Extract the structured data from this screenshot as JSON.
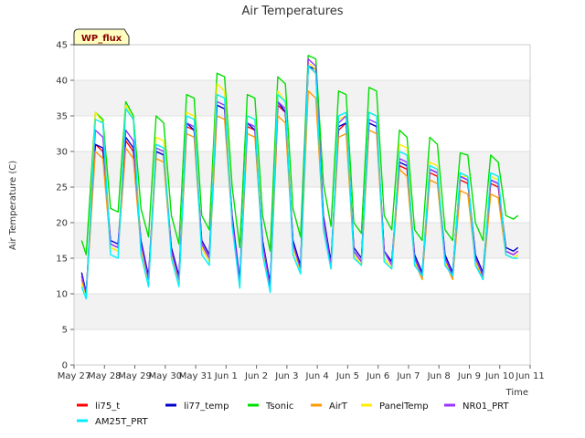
{
  "chart_data": {
    "type": "line",
    "title": "Air Temperatures",
    "xlabel": "Time",
    "ylabel": "Air Temperature (C)",
    "badge": "WP_flux",
    "ylim": [
      0,
      45
    ],
    "yticks": [
      0,
      5,
      10,
      15,
      20,
      25,
      30,
      35,
      40,
      45
    ],
    "xlim": [
      0,
      15
    ],
    "xticks": [
      {
        "x": 0,
        "label": "May 27"
      },
      {
        "x": 1,
        "label": "May 28"
      },
      {
        "x": 2,
        "label": "May 29"
      },
      {
        "x": 3,
        "label": "May 30"
      },
      {
        "x": 4,
        "label": "May 31"
      },
      {
        "x": 5,
        "label": "Jun 1"
      },
      {
        "x": 6,
        "label": "Jun 2"
      },
      {
        "x": 7,
        "label": "Jun 3"
      },
      {
        "x": 8,
        "label": "Jun 4"
      },
      {
        "x": 9,
        "label": "Jun 5"
      },
      {
        "x": 10,
        "label": "Jun 6"
      },
      {
        "x": 11,
        "label": "Jun 7"
      },
      {
        "x": 12,
        "label": "Jun 8"
      },
      {
        "x": 13,
        "label": "Jun 9"
      },
      {
        "x": 14,
        "label": "Jun 10"
      },
      {
        "x": 15,
        "label": "Jun 11"
      }
    ],
    "grid": "horizontal bands",
    "legend_position": "bottom",
    "x": [
      0.25,
      0.4,
      0.7,
      0.95,
      1.2,
      1.45,
      1.7,
      1.95,
      2.2,
      2.45,
      2.7,
      2.95,
      3.2,
      3.45,
      3.7,
      3.95,
      4.2,
      4.45,
      4.7,
      4.95,
      5.2,
      5.45,
      5.7,
      5.95,
      6.2,
      6.45,
      6.7,
      6.95,
      7.2,
      7.45,
      7.7,
      7.95,
      8.2,
      8.45,
      8.7,
      8.95,
      9.2,
      9.45,
      9.7,
      9.95,
      10.2,
      10.45,
      10.7,
      10.95,
      11.2,
      11.45,
      11.7,
      11.95,
      12.2,
      12.45,
      12.7,
      12.95,
      13.2,
      13.45,
      13.7,
      13.95,
      14.2,
      14.45,
      14.6
    ],
    "series": [
      {
        "name": "li75_t",
        "color": "#ff0000",
        "values": [
          12.5,
          10.0,
          31.0,
          30.0,
          17.0,
          16.5,
          31.5,
          30.0,
          17.0,
          12.0,
          30.0,
          29.5,
          16.0,
          12.0,
          33.5,
          33.0,
          17.0,
          15.0,
          36.5,
          36.0,
          20.5,
          11.5,
          33.5,
          33.0,
          17.0,
          11.0,
          36.5,
          35.5,
          17.0,
          13.5,
          42.0,
          41.0,
          20.0,
          14.0,
          33.0,
          34.0,
          16.0,
          14.5,
          34.0,
          33.5,
          16.0,
          14.0,
          28.0,
          27.5,
          15.0,
          12.5,
          27.0,
          26.5,
          15.0,
          12.5,
          26.0,
          25.5,
          15.0,
          12.5,
          25.5,
          25.0,
          16.0,
          15.5,
          16.0
        ]
      },
      {
        "name": "li77_temp",
        "color": "#0000cc",
        "values": [
          13.0,
          10.2,
          31.0,
          30.5,
          17.5,
          17.0,
          32.0,
          30.5,
          17.5,
          12.5,
          30.0,
          29.5,
          16.5,
          12.5,
          34.0,
          33.0,
          17.5,
          15.5,
          36.5,
          36.0,
          21.0,
          12.0,
          34.0,
          33.0,
          17.5,
          11.5,
          37.0,
          35.5,
          17.5,
          14.0,
          42.0,
          41.5,
          21.0,
          14.5,
          33.5,
          34.0,
          16.5,
          15.0,
          34.0,
          33.5,
          16.0,
          14.5,
          28.5,
          28.0,
          15.5,
          13.0,
          27.5,
          27.0,
          15.5,
          13.0,
          26.5,
          26.0,
          15.5,
          13.0,
          26.0,
          25.5,
          16.5,
          16.0,
          16.5
        ]
      },
      {
        "name": "Tsonic",
        "color": "#00e000",
        "values": [
          17.5,
          15.5,
          35.5,
          34.5,
          22.0,
          21.5,
          37.0,
          35.0,
          22.0,
          18.0,
          35.0,
          34.0,
          21.0,
          17.0,
          38.0,
          37.5,
          21.0,
          19.0,
          41.0,
          40.5,
          25.0,
          16.5,
          38.0,
          37.5,
          21.0,
          16.0,
          40.5,
          39.5,
          22.0,
          18.0,
          43.5,
          43.0,
          25.5,
          19.5,
          38.5,
          38.0,
          20.0,
          18.5,
          39.0,
          38.5,
          21.0,
          19.0,
          33.0,
          32.0,
          19.0,
          17.5,
          32.0,
          31.0,
          19.0,
          17.5,
          29.8,
          29.5,
          20.0,
          17.5,
          29.5,
          28.5,
          21.0,
          20.5,
          21.0
        ]
      },
      {
        "name": "AirT",
        "color": "#ff9900",
        "values": [
          12.0,
          9.8,
          30.0,
          29.0,
          16.5,
          16.0,
          30.5,
          29.0,
          16.5,
          11.5,
          29.0,
          28.5,
          15.5,
          11.5,
          32.5,
          32.0,
          16.5,
          14.5,
          35.0,
          34.5,
          20.0,
          11.0,
          32.5,
          32.0,
          16.5,
          10.5,
          35.0,
          34.0,
          16.5,
          13.0,
          38.5,
          37.5,
          19.5,
          13.5,
          32.0,
          32.5,
          15.5,
          14.0,
          33.0,
          32.5,
          15.0,
          13.5,
          27.5,
          26.5,
          14.5,
          12.0,
          26.0,
          25.5,
          14.5,
          12.0,
          24.5,
          24.0,
          14.5,
          12.0,
          24.0,
          23.5,
          15.5,
          15.0,
          15.5
        ]
      },
      {
        "name": "PanelTemp",
        "color": "#ffee00",
        "values": [
          11.5,
          9.5,
          35.5,
          34.0,
          16.5,
          16.0,
          36.5,
          34.5,
          16.5,
          11.5,
          32.0,
          31.5,
          15.5,
          11.5,
          35.5,
          35.0,
          16.5,
          14.5,
          39.5,
          38.5,
          20.0,
          11.0,
          35.0,
          34.5,
          16.5,
          10.5,
          38.5,
          37.0,
          16.5,
          13.0,
          42.5,
          41.5,
          19.5,
          13.5,
          34.5,
          35.0,
          15.5,
          14.0,
          35.5,
          35.0,
          15.0,
          13.5,
          31.0,
          30.5,
          14.5,
          12.5,
          28.5,
          28.0,
          14.5,
          12.5,
          26.5,
          26.5,
          14.5,
          12.5,
          26.5,
          26.0,
          15.5,
          15.0,
          15.5
        ]
      },
      {
        "name": "NR01_PRT",
        "color": "#9933ff",
        "values": [
          12.5,
          10.0,
          33.0,
          32.0,
          17.0,
          16.5,
          33.0,
          31.5,
          17.0,
          12.0,
          30.5,
          30.0,
          16.0,
          12.0,
          34.0,
          33.5,
          17.0,
          15.0,
          37.0,
          36.5,
          20.5,
          11.5,
          34.0,
          33.5,
          17.0,
          11.0,
          37.0,
          36.0,
          17.0,
          13.5,
          43.0,
          42.0,
          20.5,
          14.0,
          34.0,
          35.0,
          16.0,
          14.5,
          34.5,
          34.0,
          16.0,
          14.0,
          29.0,
          28.5,
          15.0,
          12.5,
          27.5,
          27.0,
          15.0,
          12.5,
          26.5,
          26.0,
          15.0,
          12.5,
          26.0,
          25.5,
          16.0,
          15.5,
          16.0
        ]
      },
      {
        "name": "AM25T_PRT",
        "color": "#00eeff",
        "values": [
          11.0,
          9.3,
          34.5,
          34.0,
          15.5,
          15.0,
          36.0,
          34.5,
          15.5,
          11.0,
          31.0,
          30.5,
          15.0,
          11.0,
          35.0,
          34.5,
          15.5,
          14.0,
          38.0,
          37.5,
          19.5,
          10.8,
          35.0,
          34.5,
          15.5,
          10.2,
          38.0,
          37.0,
          15.5,
          12.8,
          42.0,
          41.0,
          19.0,
          13.5,
          35.0,
          35.5,
          15.0,
          14.0,
          35.5,
          35.0,
          14.5,
          13.5,
          30.0,
          29.5,
          14.0,
          12.5,
          28.0,
          27.5,
          14.0,
          12.5,
          27.0,
          26.5,
          14.0,
          12.0,
          27.0,
          26.5,
          15.5,
          15.0,
          15.0
        ]
      }
    ]
  }
}
